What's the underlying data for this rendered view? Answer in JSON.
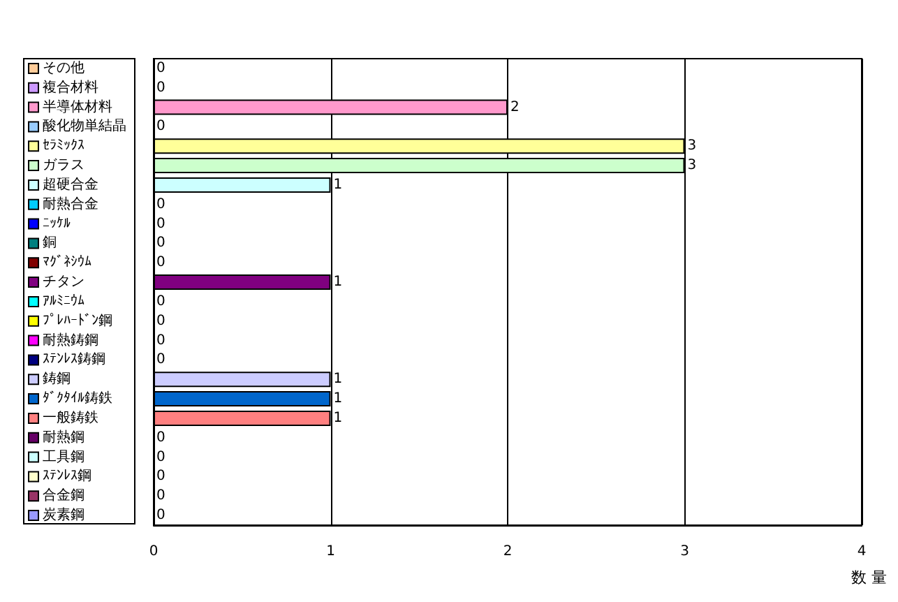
{
  "chart_data": {
    "type": "bar",
    "orientation": "horizontal",
    "xlabel": "数 量",
    "legend": "left",
    "tick_labels": "x",
    "data_labels": true,
    "categories": [
      null,
      null,
      null,
      null,
      null,
      null,
      null,
      null,
      null,
      null,
      null,
      null,
      null,
      null,
      null,
      null,
      null,
      null,
      null,
      null,
      null,
      null,
      null,
      null
    ],
    "series": [
      {
        "name": "その他",
        "color": "#ffcc99",
        "values": [
          0,
          null,
          null,
          null,
          null,
          null,
          null,
          null,
          null,
          null,
          null,
          null,
          null,
          null,
          null,
          null,
          null,
          null,
          null,
          null,
          null,
          null,
          null,
          null
        ]
      },
      {
        "name": "複合材料",
        "color": "#cc99ff",
        "values": [
          null,
          0,
          null,
          null,
          null,
          null,
          null,
          null,
          null,
          null,
          null,
          null,
          null,
          null,
          null,
          null,
          null,
          null,
          null,
          null,
          null,
          null,
          null,
          null
        ]
      },
      {
        "name": "半導体材料",
        "color": "#ff99cc",
        "values": [
          null,
          null,
          2,
          null,
          null,
          null,
          null,
          null,
          null,
          null,
          null,
          null,
          null,
          null,
          null,
          null,
          null,
          null,
          null,
          null,
          null,
          null,
          null,
          null
        ]
      },
      {
        "name": "酸化物単結晶",
        "color": "#99ccff",
        "values": [
          null,
          null,
          null,
          0,
          null,
          null,
          null,
          null,
          null,
          null,
          null,
          null,
          null,
          null,
          null,
          null,
          null,
          null,
          null,
          null,
          null,
          null,
          null,
          null
        ]
      },
      {
        "name": "ｾﾗﾐｯｸｽ",
        "color": "#ffff99",
        "values": [
          null,
          null,
          null,
          null,
          3,
          null,
          null,
          null,
          null,
          null,
          null,
          null,
          null,
          null,
          null,
          null,
          null,
          null,
          null,
          null,
          null,
          null,
          null,
          null
        ]
      },
      {
        "name": "ガラス",
        "color": "#ccffcc",
        "values": [
          null,
          null,
          null,
          null,
          null,
          3,
          null,
          null,
          null,
          null,
          null,
          null,
          null,
          null,
          null,
          null,
          null,
          null,
          null,
          null,
          null,
          null,
          null,
          null
        ]
      },
      {
        "name": "超硬合金",
        "color": "#ccffff",
        "values": [
          null,
          null,
          null,
          null,
          null,
          null,
          1,
          null,
          null,
          null,
          null,
          null,
          null,
          null,
          null,
          null,
          null,
          null,
          null,
          null,
          null,
          null,
          null,
          null
        ]
      },
      {
        "name": "耐熱合金",
        "color": "#00ccff",
        "values": [
          null,
          null,
          null,
          null,
          null,
          null,
          null,
          0,
          null,
          null,
          null,
          null,
          null,
          null,
          null,
          null,
          null,
          null,
          null,
          null,
          null,
          null,
          null,
          null
        ]
      },
      {
        "name": "ﾆｯｹﾙ",
        "color": "#0000ff",
        "values": [
          null,
          null,
          null,
          null,
          null,
          null,
          null,
          null,
          0,
          null,
          null,
          null,
          null,
          null,
          null,
          null,
          null,
          null,
          null,
          null,
          null,
          null,
          null,
          null
        ]
      },
      {
        "name": "銅",
        "color": "#008080",
        "values": [
          null,
          null,
          null,
          null,
          null,
          null,
          null,
          null,
          null,
          0,
          null,
          null,
          null,
          null,
          null,
          null,
          null,
          null,
          null,
          null,
          null,
          null,
          null,
          null
        ]
      },
      {
        "name": "ﾏｸﾞﾈｼｳﾑ",
        "color": "#800000",
        "values": [
          null,
          null,
          null,
          null,
          null,
          null,
          null,
          null,
          null,
          null,
          0,
          null,
          null,
          null,
          null,
          null,
          null,
          null,
          null,
          null,
          null,
          null,
          null,
          null
        ]
      },
      {
        "name": "チタン",
        "color": "#800080",
        "values": [
          null,
          null,
          null,
          null,
          null,
          null,
          null,
          null,
          null,
          null,
          null,
          1,
          null,
          null,
          null,
          null,
          null,
          null,
          null,
          null,
          null,
          null,
          null,
          null
        ]
      },
      {
        "name": "ｱﾙﾐﾆｳﾑ",
        "color": "#00ffff",
        "values": [
          null,
          null,
          null,
          null,
          null,
          null,
          null,
          null,
          null,
          null,
          null,
          null,
          0,
          null,
          null,
          null,
          null,
          null,
          null,
          null,
          null,
          null,
          null,
          null
        ]
      },
      {
        "name": "ﾌﾟﾚﾊｰﾄﾞﾝ鋼",
        "color": "#ffff00",
        "values": [
          null,
          null,
          null,
          null,
          null,
          null,
          null,
          null,
          null,
          null,
          null,
          null,
          null,
          0,
          null,
          null,
          null,
          null,
          null,
          null,
          null,
          null,
          null,
          null
        ]
      },
      {
        "name": "耐熱鋳鋼",
        "color": "#ff00ff",
        "values": [
          null,
          null,
          null,
          null,
          null,
          null,
          null,
          null,
          null,
          null,
          null,
          null,
          null,
          null,
          0,
          null,
          null,
          null,
          null,
          null,
          null,
          null,
          null,
          null
        ]
      },
      {
        "name": "ｽﾃﾝﾚｽ鋳鋼",
        "color": "#000080",
        "values": [
          null,
          null,
          null,
          null,
          null,
          null,
          null,
          null,
          null,
          null,
          null,
          null,
          null,
          null,
          null,
          0,
          null,
          null,
          null,
          null,
          null,
          null,
          null,
          null
        ]
      },
      {
        "name": "鋳鋼",
        "color": "#ccccff",
        "values": [
          null,
          null,
          null,
          null,
          null,
          null,
          null,
          null,
          null,
          null,
          null,
          null,
          null,
          null,
          null,
          null,
          1,
          null,
          null,
          null,
          null,
          null,
          null,
          null
        ]
      },
      {
        "name": "ﾀﾞｸﾀｲﾙ鋳鉄",
        "color": "#0066cc",
        "values": [
          null,
          null,
          null,
          null,
          null,
          null,
          null,
          null,
          null,
          null,
          null,
          null,
          null,
          null,
          null,
          null,
          null,
          1,
          null,
          null,
          null,
          null,
          null,
          null
        ]
      },
      {
        "name": "一般鋳鉄",
        "color": "#ff8080",
        "values": [
          null,
          null,
          null,
          null,
          null,
          null,
          null,
          null,
          null,
          null,
          null,
          null,
          null,
          null,
          null,
          null,
          null,
          null,
          1,
          null,
          null,
          null,
          null,
          null
        ]
      },
      {
        "name": "耐熱鋼",
        "color": "#660066",
        "values": [
          null,
          null,
          null,
          null,
          null,
          null,
          null,
          null,
          null,
          null,
          null,
          null,
          null,
          null,
          null,
          null,
          null,
          null,
          null,
          0,
          null,
          null,
          null,
          null
        ]
      },
      {
        "name": "工具鋼",
        "color": "#ccffff",
        "values": [
          null,
          null,
          null,
          null,
          null,
          null,
          null,
          null,
          null,
          null,
          null,
          null,
          null,
          null,
          null,
          null,
          null,
          null,
          null,
          null,
          0,
          null,
          null,
          null
        ]
      },
      {
        "name": "ｽﾃﾝﾚｽ鋼",
        "color": "#ffffcc",
        "values": [
          null,
          null,
          null,
          null,
          null,
          null,
          null,
          null,
          null,
          null,
          null,
          null,
          null,
          null,
          null,
          null,
          null,
          null,
          null,
          null,
          null,
          0,
          null,
          null
        ]
      },
      {
        "name": "合金鋼",
        "color": "#993366",
        "values": [
          null,
          null,
          null,
          null,
          null,
          null,
          null,
          null,
          null,
          null,
          null,
          null,
          null,
          null,
          null,
          null,
          null,
          null,
          null,
          null,
          null,
          null,
          0,
          null
        ]
      },
      {
        "name": "炭素鋼",
        "color": "#9999ff",
        "values": [
          null,
          null,
          null,
          null,
          null,
          null,
          null,
          null,
          null,
          null,
          null,
          null,
          null,
          null,
          null,
          null,
          null,
          null,
          null,
          null,
          null,
          null,
          null,
          0
        ]
      }
    ],
    "xlim": [
      0,
      4
    ],
    "xticks": [
      0,
      1,
      2,
      3,
      4
    ],
    "grid": "x"
  }
}
